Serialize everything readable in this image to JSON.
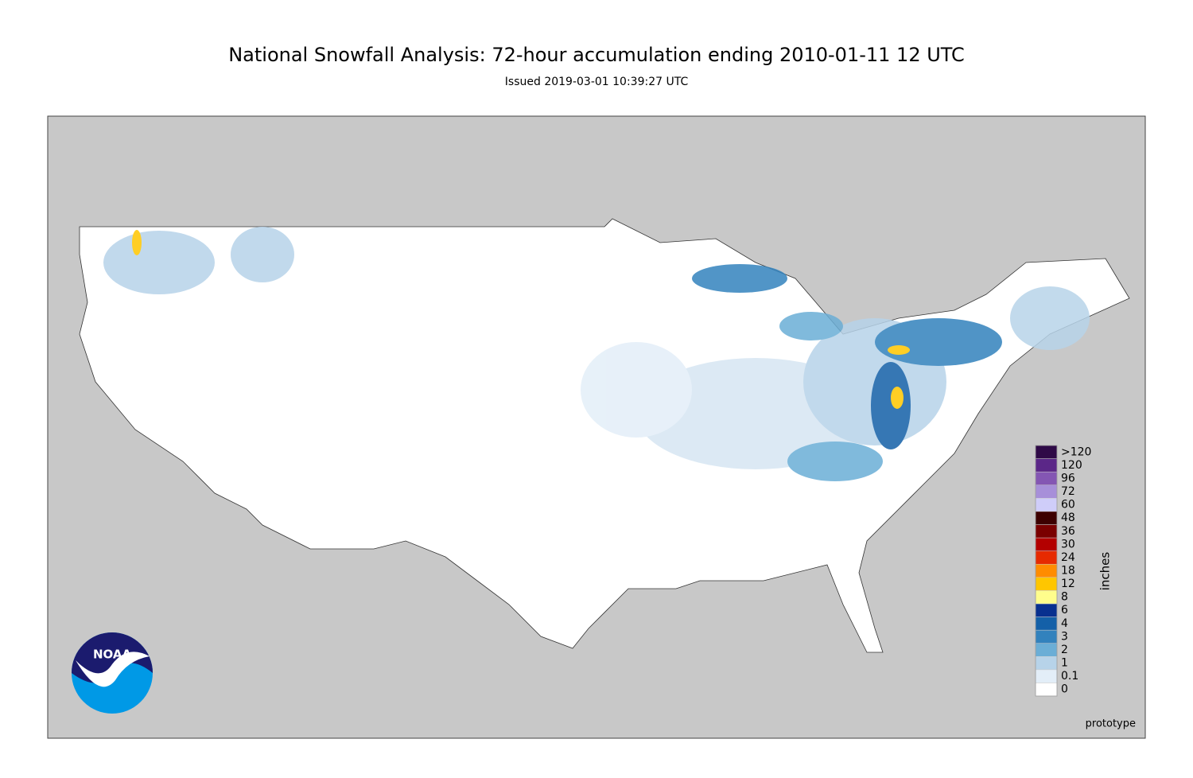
{
  "title": "National Snowfall Analysis: 72-hour accumulation ending 2010-01-11 12 UTC",
  "subtitle": "Issued 2019-03-01 10:39:27 UTC",
  "colorbar": {
    "ticks": [
      0,
      0.1,
      1,
      2,
      3,
      4,
      6,
      8,
      12,
      18,
      24,
      30,
      36,
      48,
      60,
      72,
      96,
      120
    ],
    "top_label": ">120",
    "colors": [
      "#ffffff",
      "#e3eef8",
      "#b7d3e9",
      "#6baed6",
      "#3282bd",
      "#1460a8",
      "#08308f",
      "#fffd8c",
      "#ffc600",
      "#ff8c00",
      "#e62a00",
      "#b30000",
      "#7a0000",
      "#3d0000",
      "#cfcdf9",
      "#a78fd9",
      "#8456b3",
      "#5b2788",
      "#2f0a47"
    ],
    "unit": "inches"
  },
  "logo": "NOAA",
  "footer": "prototype"
}
